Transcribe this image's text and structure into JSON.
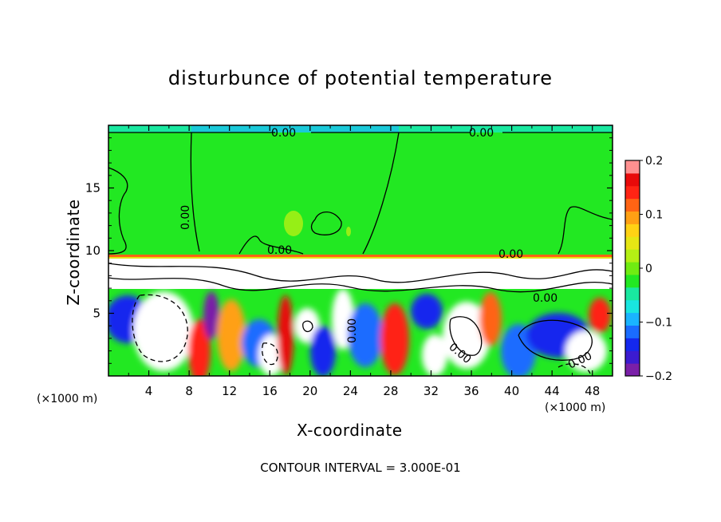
{
  "chart_data": {
    "type": "heatmap",
    "title": "disturbunce of potential temperature",
    "xlabel": "X-coordinate",
    "ylabel": "Z-coordinate",
    "x_unit": "(×1000 m)",
    "y_unit": "(×1000 m)",
    "footnote": "CONTOUR INTERVAL = 3.000E-01",
    "xlim": [
      0,
      50
    ],
    "ylim": [
      0,
      20
    ],
    "x_ticks": [
      4,
      8,
      12,
      16,
      20,
      24,
      28,
      32,
      36,
      40,
      44,
      48
    ],
    "y_ticks": [
      5,
      10,
      15
    ],
    "colorbar": {
      "range": [
        -0.2,
        0.2
      ],
      "ticks": [
        0.2,
        0.1,
        0,
        -0.1,
        -0.2
      ],
      "colors": [
        "#7a1fa8",
        "#3b1bd0",
        "#1428ee",
        "#1a6cff",
        "#1ab4ff",
        "#19e6e0",
        "#19e8a0",
        "#22e822",
        "#70ec12",
        "#b4f014",
        "#e6e614",
        "#ffd214",
        "#ffa014",
        "#ff6414",
        "#ff2414",
        "#e80a0a",
        "#ff9090"
      ]
    },
    "contour_labels": [
      "0.00",
      "0.00",
      "0.00",
      "0.00",
      "0.00",
      "0.00",
      "0.00",
      "0.00",
      "0.00"
    ],
    "grid": false
  }
}
